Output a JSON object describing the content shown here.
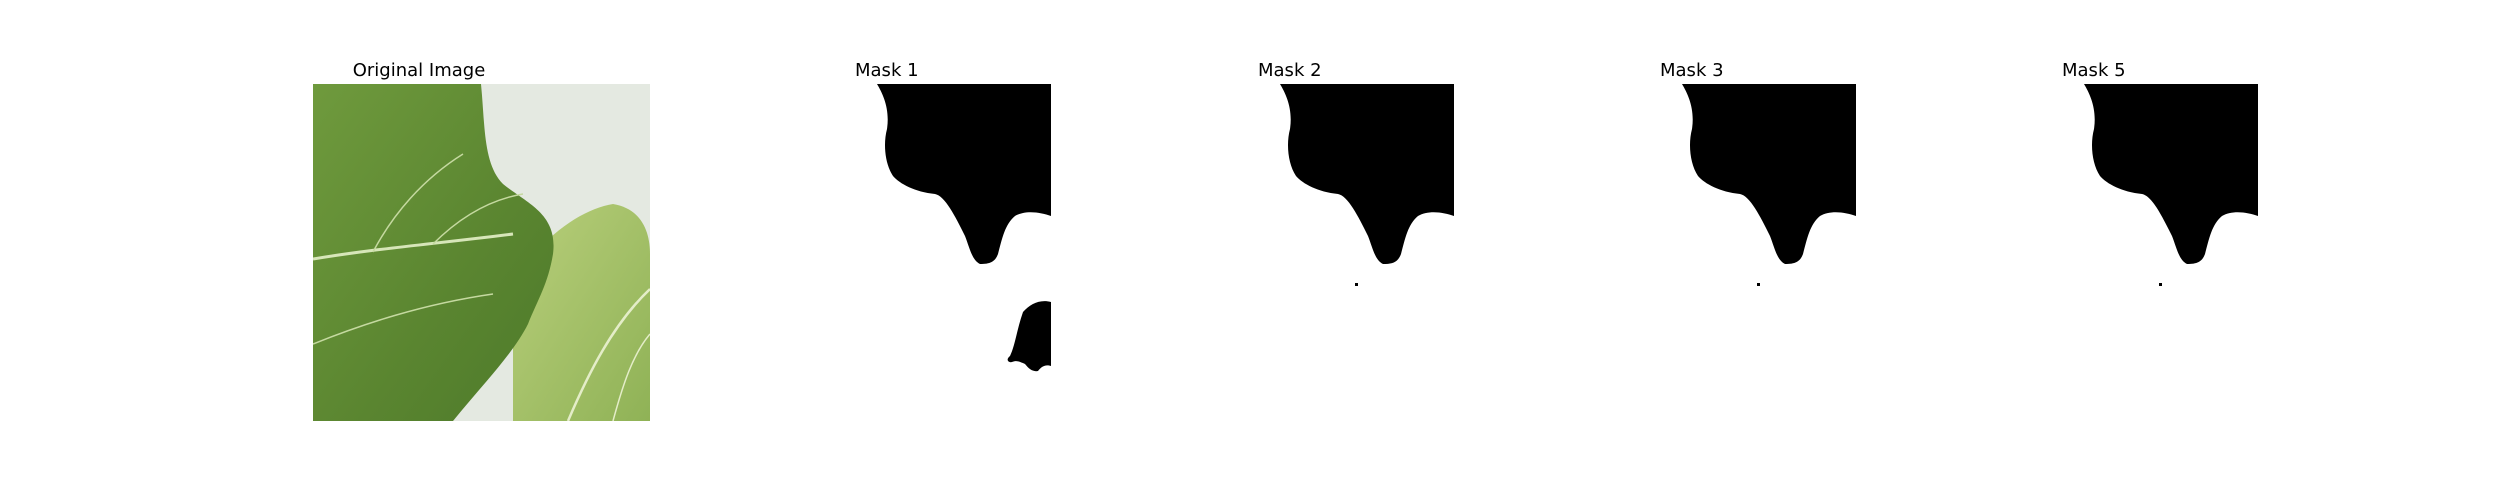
{
  "figure": {
    "panels": [
      {
        "id": "original",
        "title": "Original Image"
      },
      {
        "id": "mask1",
        "title": "Mask 1"
      },
      {
        "id": "mask2",
        "title": "Mask 2"
      },
      {
        "id": "mask3",
        "title": "Mask 3"
      },
      {
        "id": "mask5",
        "title": "Mask 5"
      }
    ]
  },
  "colors": {
    "leaf_dark": "#5d8a33",
    "leaf_light": "#9ebf66",
    "background_light": "#e3e8e0",
    "mask_fill": "#000000",
    "mask_background": "#ffffff"
  }
}
